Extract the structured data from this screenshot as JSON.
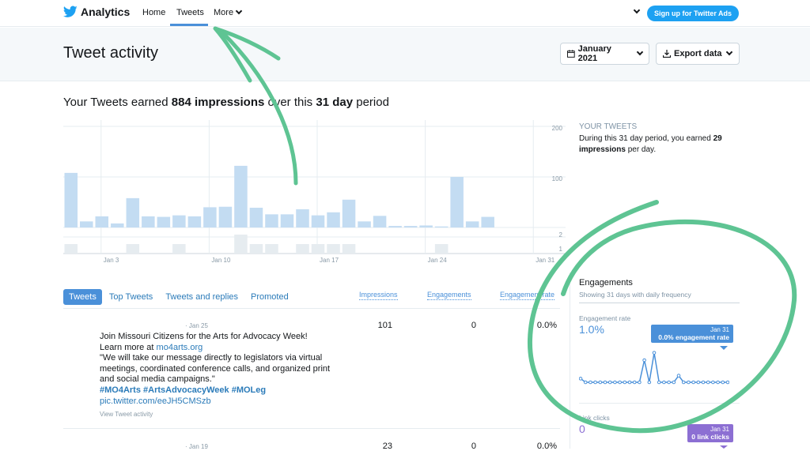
{
  "nav": {
    "brand": "Analytics",
    "links": [
      "Home",
      "Tweets",
      "More"
    ],
    "ads_button": "Sign up for Twitter Ads"
  },
  "header": {
    "title": "Tweet activity",
    "date_button": "January 2021",
    "export_button": "Export data"
  },
  "summary": {
    "prefix": "Your Tweets earned ",
    "impressions": "884 impressions",
    "middle": " over this ",
    "period": "31 day",
    "suffix": " period"
  },
  "chart_data": {
    "type": "bar",
    "x": [
      "Jan 1",
      "Jan 2",
      "Jan 3",
      "Jan 4",
      "Jan 5",
      "Jan 6",
      "Jan 7",
      "Jan 8",
      "Jan 9",
      "Jan 10",
      "Jan 11",
      "Jan 12",
      "Jan 13",
      "Jan 14",
      "Jan 15",
      "Jan 16",
      "Jan 17",
      "Jan 18",
      "Jan 19",
      "Jan 20",
      "Jan 21",
      "Jan 22",
      "Jan 23",
      "Jan 24",
      "Jan 25",
      "Jan 26",
      "Jan 27",
      "Jan 28",
      "Jan 29",
      "Jan 30",
      "Jan 31"
    ],
    "tick_labels": [
      "Jan 3",
      "Jan 10",
      "Jan 17",
      "Jan 24",
      "Jan 31"
    ],
    "series": [
      {
        "values": [
          108,
          12,
          22,
          8,
          58,
          22,
          21,
          24,
          22,
          40,
          41,
          122,
          39,
          26,
          26,
          36,
          24,
          30,
          55,
          12,
          23,
          3,
          3,
          4,
          2,
          100,
          12,
          21,
          0,
          0,
          0
        ]
      },
      {
        "values": [
          1,
          0,
          0,
          0,
          1,
          0,
          0,
          1,
          0,
          0,
          0,
          2,
          1,
          1,
          0,
          1,
          1,
          1,
          1,
          0,
          0,
          0,
          0,
          0,
          1,
          0,
          0,
          0,
          0,
          0,
          0
        ]
      }
    ],
    "y_ticks_top": [
      "200",
      "100"
    ],
    "y_ticks_bottom": [
      "2",
      "1"
    ],
    "ylim_top": [
      0,
      200
    ],
    "ylim_bottom": [
      0,
      2
    ],
    "colors": {
      "bar": "#c3dcf2",
      "bar_bottom": "#e6ecf0"
    }
  },
  "side": {
    "title": "YOUR TWEETS",
    "text_prefix": "During this 31 day period, you earned ",
    "text_value": "29 impressions",
    "text_suffix": " per day."
  },
  "tabs": [
    "Tweets",
    "Top Tweets",
    "Tweets and replies",
    "Promoted"
  ],
  "columns": [
    "Impressions",
    "Engagements",
    "Engagement rate"
  ],
  "tweets": [
    {
      "date": "· Jan 25",
      "line1": "Join Missouri Citizens for the Arts for Advocacy Week!",
      "line2": "Learn more at ",
      "link": "mo4arts.org",
      "quote": "\"We will take our message directly to legislators via virtual meetings, coordinated conference calls, and organized print and social media campaigns.\"",
      "hashtags": "#MO4Arts #ArtsAdvocacyWeek #MOLeg",
      "pic": "pic.twitter.com/eeJH5CMSzb",
      "view": "View Tweet activity",
      "impressions": "101",
      "engagements": "0",
      "rate": "0.0%"
    },
    {
      "date": "· Jan 19",
      "impressions": "23",
      "engagements": "0",
      "rate": "0.0%"
    }
  ],
  "engagements": {
    "title": "Engagements",
    "subtitle": "Showing 31 days with daily frequency",
    "rate_label": "Engagement rate",
    "rate_value": "1.0%",
    "rate_tip_date": "Jan 31",
    "rate_tip_text": "0.0% engagement rate",
    "rate_series": [
      0.5,
      0,
      0,
      0,
      0,
      0,
      0,
      0,
      0,
      0,
      0,
      0,
      0,
      3.0,
      0,
      4.0,
      0,
      0,
      0,
      0,
      0.9,
      0,
      0,
      0,
      0,
      0,
      0,
      0,
      0,
      0,
      0
    ],
    "link_label": "Link clicks",
    "link_value": "0",
    "link_tip_date": "Jan 31",
    "link_tip_text": "0 link clicks",
    "colors": {
      "rate": "#4a90d9",
      "link": "#8c6fd3",
      "annotation": "#5ec493"
    }
  }
}
